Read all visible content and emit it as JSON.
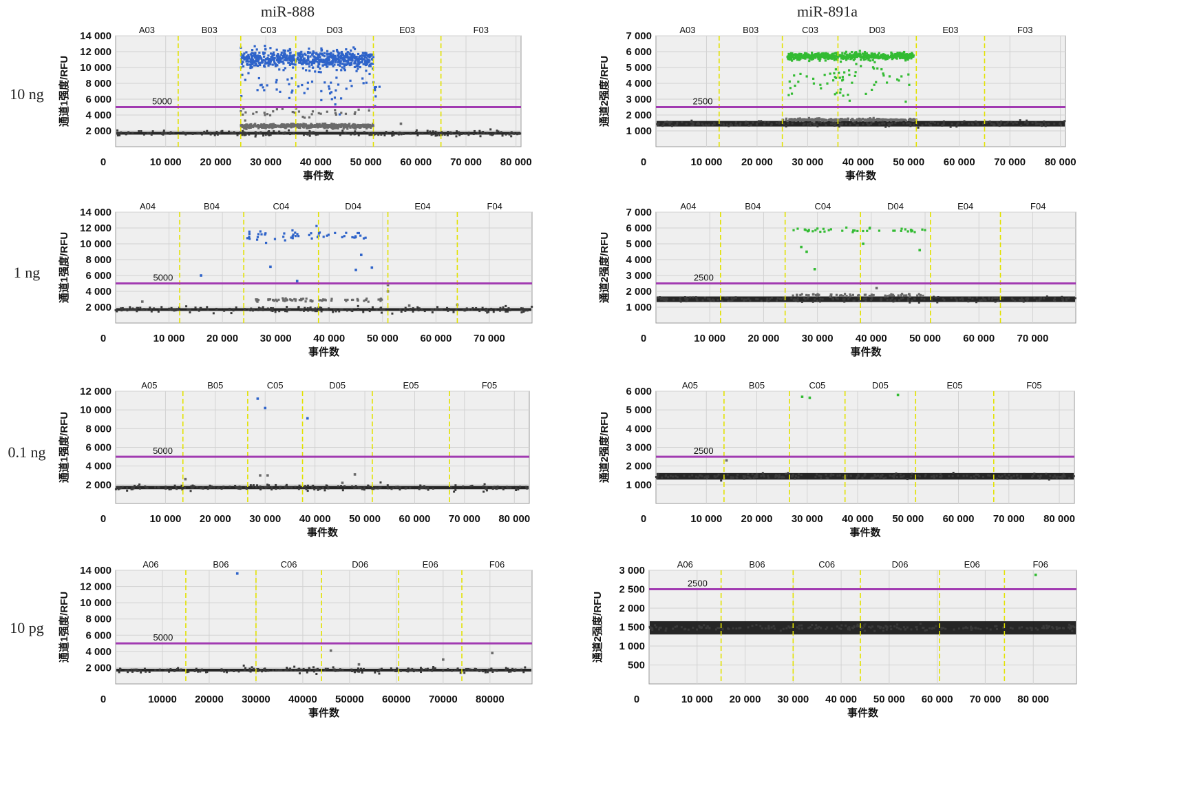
{
  "titles": {
    "left": "miR-888",
    "right": "miR-891a"
  },
  "row_labels": [
    "10 ng",
    "1 ng",
    "0.1 ng",
    "10 pg"
  ],
  "colors": {
    "positive_ch1": "#2e63c9",
    "positive_ch2": "#33bb33",
    "rain": "#6a6a6a",
    "negative": "#1a1a1a",
    "threshold": "#a13ab1",
    "well_divider": "#e2e200",
    "plot_bg": "#efefef",
    "grid": "#d2d2d2"
  },
  "chart_data": [
    {
      "type": "scatter",
      "channel": 1,
      "row": "10 ng",
      "column": "miR-888",
      "ylabel": "通道1强度/RFU",
      "xlabel": "事件数",
      "xlim": [
        0,
        81000
      ],
      "ylim": [
        0,
        14000
      ],
      "xticks": [
        {
          "v": 0,
          "t": "0"
        },
        {
          "v": 10000,
          "t": "10 000"
        },
        {
          "v": 20000,
          "t": "20 000"
        },
        {
          "v": 30000,
          "t": "30 000"
        },
        {
          "v": 40000,
          "t": "40 000"
        },
        {
          "v": 50000,
          "t": "50 000"
        },
        {
          "v": 60000,
          "t": "60 000"
        },
        {
          "v": 70000,
          "t": "70 000"
        },
        {
          "v": 80000,
          "t": "80 000"
        }
      ],
      "yticks": [
        {
          "v": 2000,
          "t": "2 000"
        },
        {
          "v": 4000,
          "t": "4 000"
        },
        {
          "v": 6000,
          "t": "6 000"
        },
        {
          "v": 8000,
          "t": "8 000"
        },
        {
          "v": 10000,
          "t": "10 000"
        },
        {
          "v": 12000,
          "t": "12 000"
        },
        {
          "v": 14000,
          "t": "14 000"
        }
      ],
      "threshold": 5000,
      "threshold_label": "5000",
      "wells": [
        "A03",
        "B03",
        "C03",
        "D03",
        "E03",
        "F03"
      ],
      "well_boundaries": [
        12500,
        25000,
        36000,
        51500,
        65000
      ],
      "negative_level": 1700,
      "clusters": [
        {
          "kind": "positive",
          "x_range": [
            25000,
            51500
          ],
          "y_mean": 11000,
          "y_spread": 1100,
          "count": 650
        },
        {
          "kind": "positive",
          "x_range": [
            25000,
            53000
          ],
          "y_mean": 7500,
          "y_spread": 2400,
          "count": 60
        },
        {
          "kind": "rain",
          "x_range": [
            25000,
            51500
          ],
          "y_mean": 2600,
          "y_spread": 260,
          "count": 500
        },
        {
          "kind": "rain",
          "x_range": [
            25000,
            51500
          ],
          "y_mean": 4300,
          "y_spread": 600,
          "count": 35
        }
      ],
      "extra_points": [
        {
          "x": 57000,
          "y": 2900,
          "kind": "rain"
        }
      ]
    },
    {
      "type": "scatter",
      "channel": 2,
      "row": "10 ng",
      "column": "miR-891a",
      "ylabel": "通道2强度/RFU",
      "xlabel": "事件数",
      "xlim": [
        0,
        81000
      ],
      "ylim": [
        0,
        7000
      ],
      "xticks": [
        {
          "v": 0,
          "t": "0"
        },
        {
          "v": 10000,
          "t": "10 000"
        },
        {
          "v": 20000,
          "t": "20 000"
        },
        {
          "v": 30000,
          "t": "30 000"
        },
        {
          "v": 40000,
          "t": "40 000"
        },
        {
          "v": 50000,
          "t": "50 000"
        },
        {
          "v": 60000,
          "t": "60 000"
        },
        {
          "v": 70000,
          "t": "70 000"
        },
        {
          "v": 80000,
          "t": "80 000"
        }
      ],
      "yticks": [
        {
          "v": 1000,
          "t": "1 000"
        },
        {
          "v": 2000,
          "t": "2 000"
        },
        {
          "v": 3000,
          "t": "3 000"
        },
        {
          "v": 4000,
          "t": "4 000"
        },
        {
          "v": 5000,
          "t": "5 000"
        },
        {
          "v": 6000,
          "t": "6 000"
        },
        {
          "v": 7000,
          "t": "7 000"
        }
      ],
      "threshold": 2500,
      "threshold_label": "2500",
      "wells": [
        "A03",
        "B03",
        "C03",
        "D03",
        "E03",
        "F03"
      ],
      "well_boundaries": [
        12500,
        25000,
        36000,
        51500,
        65000
      ],
      "negative_level": 1450,
      "clusters": [
        {
          "kind": "positive",
          "x_range": [
            26000,
            51000
          ],
          "y_mean": 5700,
          "y_spread": 220,
          "count": 600
        },
        {
          "kind": "positive",
          "x_range": [
            26000,
            51000
          ],
          "y_mean": 4300,
          "y_spread": 1100,
          "count": 60
        },
        {
          "kind": "rain",
          "x_range": [
            25000,
            51500
          ],
          "y_mean": 1700,
          "y_spread": 80,
          "count": 250
        }
      ],
      "extra_points": []
    },
    {
      "type": "scatter",
      "channel": 1,
      "row": "1 ng",
      "column": "miR-888",
      "ylabel": "通道1强度/RFU",
      "xlabel": "事件数",
      "xlim": [
        0,
        78000
      ],
      "ylim": [
        0,
        14000
      ],
      "xticks": [
        {
          "v": 0,
          "t": "0"
        },
        {
          "v": 10000,
          "t": "10 000"
        },
        {
          "v": 20000,
          "t": "20 000"
        },
        {
          "v": 30000,
          "t": "30 000"
        },
        {
          "v": 40000,
          "t": "40 000"
        },
        {
          "v": 50000,
          "t": "50 000"
        },
        {
          "v": 60000,
          "t": "60 000"
        },
        {
          "v": 70000,
          "t": "70 000"
        }
      ],
      "yticks": [
        {
          "v": 2000,
          "t": "2 000"
        },
        {
          "v": 4000,
          "t": "4 000"
        },
        {
          "v": 6000,
          "t": "6 000"
        },
        {
          "v": 8000,
          "t": "8 000"
        },
        {
          "v": 10000,
          "t": "10 000"
        },
        {
          "v": 12000,
          "t": "12 000"
        },
        {
          "v": 14000,
          "t": "14 000"
        }
      ],
      "threshold": 5000,
      "threshold_label": "5000",
      "wells": [
        "A04",
        "B04",
        "C04",
        "D04",
        "E04",
        "F04"
      ],
      "well_boundaries": [
        12000,
        24000,
        38000,
        51000,
        64000
      ],
      "negative_level": 1700,
      "clusters": [
        {
          "kind": "positive",
          "x_range": [
            24000,
            47000
          ],
          "y_mean": 11000,
          "y_spread": 700,
          "count": 50
        },
        {
          "kind": "rain",
          "x_range": [
            26000,
            50000
          ],
          "y_mean": 2900,
          "y_spread": 200,
          "count": 70
        }
      ],
      "extra_points": [
        {
          "x": 16000,
          "y": 6000,
          "kind": "positive"
        },
        {
          "x": 29000,
          "y": 7100,
          "kind": "positive"
        },
        {
          "x": 34000,
          "y": 5300,
          "kind": "positive"
        },
        {
          "x": 45000,
          "y": 6700,
          "kind": "positive"
        },
        {
          "x": 48000,
          "y": 7000,
          "kind": "positive"
        },
        {
          "x": 46000,
          "y": 8600,
          "kind": "positive"
        },
        {
          "x": 5000,
          "y": 2700,
          "kind": "rain"
        },
        {
          "x": 51000,
          "y": 4000,
          "kind": "rain"
        },
        {
          "x": 51000,
          "y": 4800,
          "kind": "rain"
        },
        {
          "x": 55000,
          "y": 2200,
          "kind": "rain"
        },
        {
          "x": 64000,
          "y": 2300,
          "kind": "rain"
        }
      ]
    },
    {
      "type": "scatter",
      "channel": 2,
      "row": "1 ng",
      "column": "miR-891a",
      "ylabel": "通道2强度/RFU",
      "xlabel": "事件数",
      "xlim": [
        0,
        78000
      ],
      "ylim": [
        0,
        7000
      ],
      "xticks": [
        {
          "v": 0,
          "t": "0"
        },
        {
          "v": 10000,
          "t": "10 000"
        },
        {
          "v": 20000,
          "t": "20 000"
        },
        {
          "v": 30000,
          "t": "30 000"
        },
        {
          "v": 40000,
          "t": "40 000"
        },
        {
          "v": 50000,
          "t": "50 000"
        },
        {
          "v": 60000,
          "t": "60 000"
        },
        {
          "v": 70000,
          "t": "70 000"
        }
      ],
      "yticks": [
        {
          "v": 1000,
          "t": "1 000"
        },
        {
          "v": 2000,
          "t": "2 000"
        },
        {
          "v": 3000,
          "t": "3 000"
        },
        {
          "v": 4000,
          "t": "4 000"
        },
        {
          "v": 5000,
          "t": "5 000"
        },
        {
          "v": 6000,
          "t": "6 000"
        },
        {
          "v": 7000,
          "t": "7 000"
        }
      ],
      "threshold": 2500,
      "threshold_label": "2500",
      "wells": [
        "A04",
        "B04",
        "C04",
        "D04",
        "E04",
        "F04"
      ],
      "well_boundaries": [
        12000,
        24000,
        38000,
        51000,
        64000
      ],
      "negative_level": 1500,
      "clusters": [
        {
          "kind": "positive",
          "x_range": [
            25500,
            50000
          ],
          "y_mean": 5850,
          "y_spread": 150,
          "count": 40
        },
        {
          "kind": "rain",
          "x_range": [
            24000,
            51000
          ],
          "y_mean": 1750,
          "y_spread": 80,
          "count": 60
        }
      ],
      "extra_points": [
        {
          "x": 27000,
          "y": 4800,
          "kind": "positive"
        },
        {
          "x": 28000,
          "y": 4500,
          "kind": "positive"
        },
        {
          "x": 29500,
          "y": 3400,
          "kind": "positive"
        },
        {
          "x": 38500,
          "y": 5000,
          "kind": "positive"
        },
        {
          "x": 49000,
          "y": 4600,
          "kind": "positive"
        },
        {
          "x": 41000,
          "y": 2200,
          "kind": "rain"
        }
      ]
    },
    {
      "type": "scatter",
      "channel": 1,
      "row": "0.1 ng",
      "column": "miR-888",
      "ylabel": "通道1强度/RFU",
      "xlabel": "事件数",
      "xlim": [
        0,
        83000
      ],
      "ylim": [
        0,
        12000
      ],
      "xticks": [
        {
          "v": 0,
          "t": "0"
        },
        {
          "v": 10000,
          "t": "10 000"
        },
        {
          "v": 20000,
          "t": "20 000"
        },
        {
          "v": 30000,
          "t": "30 000"
        },
        {
          "v": 40000,
          "t": "40 000"
        },
        {
          "v": 50000,
          "t": "50 000"
        },
        {
          "v": 60000,
          "t": "60 000"
        },
        {
          "v": 70000,
          "t": "70 000"
        },
        {
          "v": 80000,
          "t": "80 000"
        }
      ],
      "yticks": [
        {
          "v": 2000,
          "t": "2 000"
        },
        {
          "v": 4000,
          "t": "4 000"
        },
        {
          "v": 6000,
          "t": "6 000"
        },
        {
          "v": 8000,
          "t": "8 000"
        },
        {
          "v": 10000,
          "t": "10 000"
        },
        {
          "v": 12000,
          "t": "12 000"
        }
      ],
      "threshold": 5000,
      "threshold_label": "5000",
      "wells": [
        "A05",
        "B05",
        "C05",
        "D05",
        "E05",
        "F05"
      ],
      "well_boundaries": [
        13500,
        26500,
        37500,
        51500,
        67000
      ],
      "negative_level": 1700,
      "clusters": [],
      "extra_points": [
        {
          "x": 28500,
          "y": 11200,
          "kind": "positive"
        },
        {
          "x": 30000,
          "y": 10200,
          "kind": "positive"
        },
        {
          "x": 38500,
          "y": 9100,
          "kind": "positive"
        },
        {
          "x": 14000,
          "y": 2600,
          "kind": "rain"
        },
        {
          "x": 29000,
          "y": 3000,
          "kind": "rain"
        },
        {
          "x": 30500,
          "y": 3000,
          "kind": "rain"
        },
        {
          "x": 45500,
          "y": 2200,
          "kind": "rain"
        },
        {
          "x": 48000,
          "y": 3100,
          "kind": "rain"
        }
      ]
    },
    {
      "type": "scatter",
      "channel": 2,
      "row": "0.1 ng",
      "column": "miR-891a",
      "ylabel": "通道2强度/RFU",
      "xlabel": "事件数",
      "xlim": [
        0,
        83000
      ],
      "ylim": [
        0,
        6000
      ],
      "xticks": [
        {
          "v": 0,
          "t": "0"
        },
        {
          "v": 10000,
          "t": "10 000"
        },
        {
          "v": 20000,
          "t": "20 000"
        },
        {
          "v": 30000,
          "t": "30 000"
        },
        {
          "v": 40000,
          "t": "40 000"
        },
        {
          "v": 50000,
          "t": "50 000"
        },
        {
          "v": 60000,
          "t": "60 000"
        },
        {
          "v": 70000,
          "t": "70 000"
        },
        {
          "v": 80000,
          "t": "80 000"
        }
      ],
      "yticks": [
        {
          "v": 1000,
          "t": "1 000"
        },
        {
          "v": 2000,
          "t": "2 000"
        },
        {
          "v": 3000,
          "t": "3 000"
        },
        {
          "v": 4000,
          "t": "4 000"
        },
        {
          "v": 5000,
          "t": "5 000"
        },
        {
          "v": 6000,
          "t": "6 000"
        }
      ],
      "threshold": 2500,
      "threshold_label": "2500",
      "wells": [
        "A05",
        "B05",
        "C05",
        "D05",
        "E05",
        "F05"
      ],
      "well_boundaries": [
        13500,
        26500,
        37500,
        51500,
        67000
      ],
      "negative_level": 1450,
      "clusters": [],
      "extra_points": [
        {
          "x": 29000,
          "y": 5700,
          "kind": "positive"
        },
        {
          "x": 30500,
          "y": 5650,
          "kind": "positive"
        },
        {
          "x": 48000,
          "y": 5800,
          "kind": "positive"
        },
        {
          "x": 14000,
          "y": 2300,
          "kind": "rain"
        }
      ]
    },
    {
      "type": "scatter",
      "channel": 1,
      "row": "10 pg",
      "column": "miR-888",
      "ylabel": "通道1强度/RFU",
      "xlabel": "事件数",
      "xlim": [
        0,
        89000
      ],
      "ylim": [
        0,
        14000
      ],
      "xticks": [
        {
          "v": 0,
          "t": "0"
        },
        {
          "v": 10000,
          "t": "10000"
        },
        {
          "v": 20000,
          "t": "20000"
        },
        {
          "v": 30000,
          "t": "30000"
        },
        {
          "v": 40000,
          "t": "40000"
        },
        {
          "v": 50000,
          "t": "50000"
        },
        {
          "v": 60000,
          "t": "60000"
        },
        {
          "v": 70000,
          "t": "70000"
        },
        {
          "v": 80000,
          "t": "80000"
        }
      ],
      "yticks": [
        {
          "v": 2000,
          "t": "2 000"
        },
        {
          "v": 4000,
          "t": "4 000"
        },
        {
          "v": 6000,
          "t": "6 000"
        },
        {
          "v": 8000,
          "t": "8 000"
        },
        {
          "v": 10000,
          "t": "10 000"
        },
        {
          "v": 12000,
          "t": "12 000"
        },
        {
          "v": 14000,
          "t": "14 000"
        }
      ],
      "threshold": 5000,
      "threshold_label": "5000",
      "wells": [
        "A06",
        "B06",
        "C06",
        "D06",
        "E06",
        "F06"
      ],
      "well_boundaries": [
        15000,
        30000,
        44000,
        60500,
        74000
      ],
      "negative_level": 1700,
      "clusters": [],
      "extra_points": [
        {
          "x": 26000,
          "y": 13600,
          "kind": "positive"
        },
        {
          "x": 46000,
          "y": 4100,
          "kind": "rain"
        },
        {
          "x": 52000,
          "y": 2400,
          "kind": "rain"
        },
        {
          "x": 70000,
          "y": 3000,
          "kind": "rain"
        },
        {
          "x": 80500,
          "y": 3800,
          "kind": "rain"
        }
      ]
    },
    {
      "type": "scatter",
      "channel": 2,
      "row": "10 pg",
      "column": "miR-891a",
      "ylabel": "通道2强度/RFU",
      "xlabel": "事件数",
      "xlim": [
        0,
        89000
      ],
      "ylim": [
        0,
        3000
      ],
      "xticks": [
        {
          "v": 0,
          "t": "0"
        },
        {
          "v": 10000,
          "t": "10 000"
        },
        {
          "v": 20000,
          "t": "20 000"
        },
        {
          "v": 30000,
          "t": "30 000"
        },
        {
          "v": 40000,
          "t": "40 000"
        },
        {
          "v": 50000,
          "t": "50 000"
        },
        {
          "v": 60000,
          "t": "60 000"
        },
        {
          "v": 70000,
          "t": "70 000"
        },
        {
          "v": 80000,
          "t": "80 000"
        }
      ],
      "yticks": [
        {
          "v": 500,
          "t": "500"
        },
        {
          "v": 1000,
          "t": "1 000"
        },
        {
          "v": 1500,
          "t": "1 500"
        },
        {
          "v": 2000,
          "t": "2 000"
        },
        {
          "v": 2500,
          "t": "2 500"
        },
        {
          "v": 3000,
          "t": "3 000"
        }
      ],
      "threshold": 2500,
      "threshold_label": "2500",
      "wells": [
        "A06",
        "B06",
        "C06",
        "D06",
        "E06",
        "F06"
      ],
      "well_boundaries": [
        15000,
        30000,
        44000,
        60500,
        74000
      ],
      "negative_level": 1480,
      "clusters": [],
      "extra_points": [
        {
          "x": 80500,
          "y": 2880,
          "kind": "positive"
        }
      ]
    }
  ]
}
